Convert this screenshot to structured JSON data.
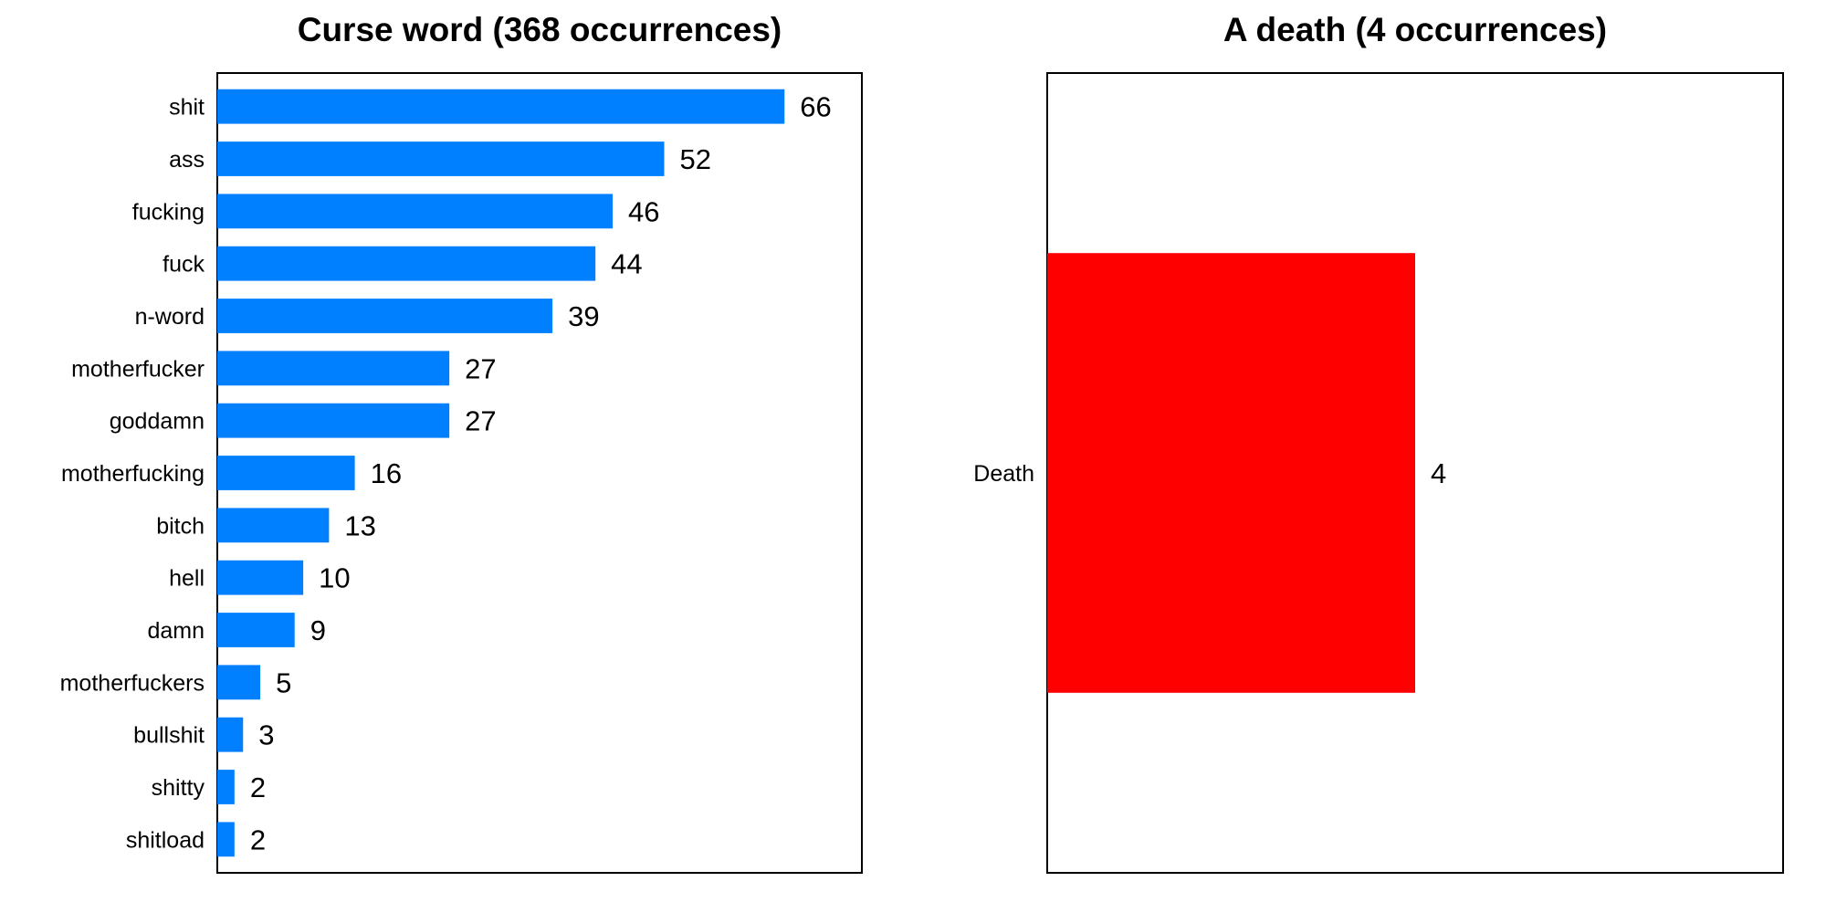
{
  "chart_data": [
    {
      "type": "bar",
      "orientation": "horizontal",
      "title": "Curse word (368 occurrences)",
      "xlabel": "",
      "ylabel": "",
      "categories": [
        "shit",
        "ass",
        "fucking",
        "fuck",
        "n-word",
        "motherfucker",
        "goddamn",
        "motherfucking",
        "bitch",
        "hell",
        "damn",
        "motherfuckers",
        "bullshit",
        "shitty",
        "shitload"
      ],
      "values": [
        66,
        52,
        46,
        44,
        39,
        27,
        27,
        16,
        13,
        10,
        9,
        5,
        3,
        2,
        2
      ],
      "xlim": [
        0,
        75
      ],
      "color": "#0080ff",
      "grid": false,
      "legend": "none",
      "data_labels": true
    },
    {
      "type": "bar",
      "orientation": "horizontal",
      "title": "A death (4 occurrences)",
      "xlabel": "",
      "ylabel": "",
      "categories": [
        "Death"
      ],
      "values": [
        4
      ],
      "xlim": [
        0,
        8
      ],
      "color": "#ff0000",
      "grid": false,
      "legend": "none",
      "data_labels": true
    }
  ]
}
